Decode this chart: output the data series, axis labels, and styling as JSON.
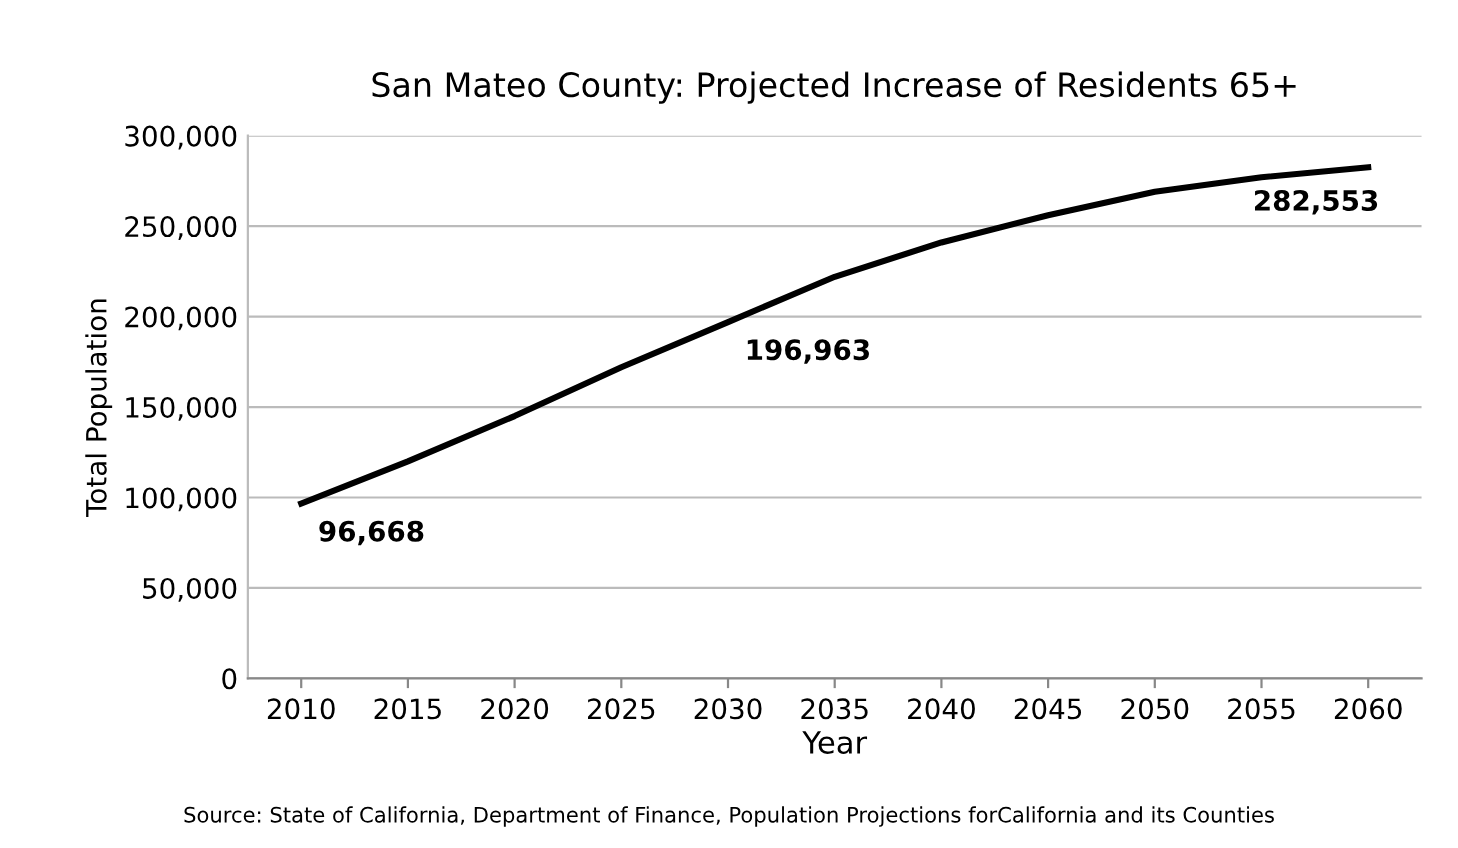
{
  "chart_data": {
    "type": "line",
    "title": "San Mateo County: Projected Increase of Residents 65+",
    "xlabel": "Year",
    "ylabel": "Total Population",
    "categories": [
      "2010",
      "2015",
      "2020",
      "2025",
      "2030",
      "2035",
      "2040",
      "2045",
      "2050",
      "2055",
      "2060"
    ],
    "series": [
      {
        "color": "#000000",
        "values": [
          96668,
          120000,
          145000,
          172000,
          196963,
          222000,
          241000,
          256000,
          269000,
          277000,
          282553
        ],
        "value_labels": [
          "96,668",
          null,
          null,
          null,
          "196,963",
          null,
          null,
          null,
          null,
          null,
          "282,553"
        ]
      }
    ],
    "ylim": [
      0,
      300000
    ],
    "yticks": [
      {
        "value": 0,
        "label": "0"
      },
      {
        "value": 50000,
        "label": "50,000"
      },
      {
        "value": 100000,
        "label": "100,000"
      },
      {
        "value": 150000,
        "label": "150,000"
      },
      {
        "value": 200000,
        "label": "200,000"
      },
      {
        "value": 250000,
        "label": "250,000"
      },
      {
        "value": 300000,
        "label": "300,000"
      }
    ],
    "grid": "y",
    "marker": "none",
    "line_style": "solid",
    "annotations": [
      "Source: State of California, Department of Finance, Population Projections forCalifornia and its Counties"
    ]
  }
}
